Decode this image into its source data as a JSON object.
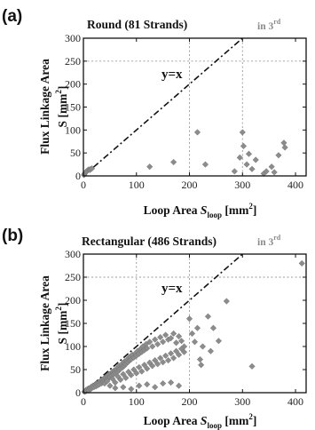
{
  "chart_data": [
    {
      "type": "scatter",
      "panel": "(a)",
      "title": "Round  (81 Strands)",
      "annotation_base": "in 3",
      "annotation_sup": "rd",
      "xlabel_prefix": "Loop Area ",
      "xlabel_var": "S",
      "xlabel_sub": "loop",
      "xlabel_unit": " [mm",
      "xlabel_unit_sup": "2",
      "xlabel_unit_end": "]",
      "ylabel_line1": "Flux Linkage Area",
      "ylabel_line2_base": "S [mm",
      "ylabel_line2_sup": "2",
      "ylabel_line2_end": "]",
      "reference_line_label": "y=x",
      "xlim": [
        0,
        420
      ],
      "ylim": [
        0,
        300
      ],
      "xticks": [
        0,
        100,
        200,
        300,
        400
      ],
      "yticks": [
        0,
        50,
        100,
        150,
        200,
        250,
        300
      ],
      "xtick_labels": [
        "0",
        "100",
        "200",
        "300",
        "400"
      ],
      "ytick_labels": [
        "0",
        "50",
        "100",
        "150",
        "200",
        "250",
        "300"
      ],
      "guide_x": [
        200,
        300
      ],
      "guide_y": 250,
      "points": [
        [
          1,
          2
        ],
        [
          2,
          4
        ],
        [
          3,
          6
        ],
        [
          4,
          7
        ],
        [
          5,
          9
        ],
        [
          6,
          10
        ],
        [
          8,
          12
        ],
        [
          10,
          14
        ],
        [
          12,
          13
        ],
        [
          14,
          15
        ],
        [
          16,
          16
        ],
        [
          125,
          20
        ],
        [
          170,
          30
        ],
        [
          215,
          95
        ],
        [
          230,
          25
        ],
        [
          285,
          10
        ],
        [
          295,
          40
        ],
        [
          300,
          95
        ],
        [
          302,
          65
        ],
        [
          308,
          25
        ],
        [
          312,
          48
        ],
        [
          318,
          15
        ],
        [
          325,
          35
        ],
        [
          340,
          5
        ],
        [
          345,
          10
        ],
        [
          355,
          20
        ],
        [
          360,
          8
        ],
        [
          368,
          45
        ],
        [
          378,
          72
        ],
        [
          380,
          62
        ]
      ]
    },
    {
      "type": "scatter",
      "panel": "(b)",
      "title": "Rectangular (486 Strands)",
      "annotation_base": "in 3",
      "annotation_sup": "rd",
      "xlabel_prefix": "Loop Area ",
      "xlabel_var": "S",
      "xlabel_sub": "loop",
      "xlabel_unit": " [mm",
      "xlabel_unit_sup": "2",
      "xlabel_unit_end": "]",
      "ylabel_line1": "Flux Linkage Area",
      "ylabel_line2_base": "S [mm",
      "ylabel_line2_sup": "2",
      "ylabel_line2_end": "]",
      "reference_line_label": "y=x",
      "xlim": [
        0,
        420
      ],
      "ylim": [
        0,
        300
      ],
      "xticks": [
        0,
        100,
        200,
        300,
        400
      ],
      "yticks": [
        0,
        50,
        100,
        150,
        200,
        250,
        300
      ],
      "xtick_labels": [
        "0",
        "100",
        "200",
        "300",
        "400"
      ],
      "ytick_labels": [
        "0",
        "50",
        "100",
        "150",
        "200",
        "250",
        "300"
      ],
      "guide_x": [
        100,
        200
      ],
      "guide_y": 250,
      "points": [
        [
          2,
          2
        ],
        [
          4,
          3
        ],
        [
          5,
          6
        ],
        [
          6,
          4
        ],
        [
          8,
          7
        ],
        [
          9,
          9
        ],
        [
          10,
          5
        ],
        [
          12,
          10
        ],
        [
          14,
          8
        ],
        [
          15,
          13
        ],
        [
          17,
          11
        ],
        [
          18,
          15
        ],
        [
          20,
          12
        ],
        [
          22,
          17
        ],
        [
          24,
          14
        ],
        [
          25,
          20
        ],
        [
          27,
          16
        ],
        [
          29,
          22
        ],
        [
          30,
          18
        ],
        [
          32,
          25
        ],
        [
          34,
          20
        ],
        [
          35,
          28
        ],
        [
          37,
          23
        ],
        [
          38,
          30
        ],
        [
          40,
          26
        ],
        [
          42,
          33
        ],
        [
          44,
          28
        ],
        [
          45,
          36
        ],
        [
          47,
          31
        ],
        [
          48,
          40
        ],
        [
          50,
          34
        ],
        [
          52,
          42
        ],
        [
          54,
          37
        ],
        [
          55,
          45
        ],
        [
          57,
          40
        ],
        [
          58,
          48
        ],
        [
          60,
          43
        ],
        [
          62,
          50
        ],
        [
          64,
          45
        ],
        [
          65,
          55
        ],
        [
          67,
          48
        ],
        [
          68,
          58
        ],
        [
          70,
          52
        ],
        [
          72,
          60
        ],
        [
          74,
          55
        ],
        [
          75,
          65
        ],
        [
          77,
          58
        ],
        [
          78,
          68
        ],
        [
          80,
          62
        ],
        [
          82,
          70
        ],
        [
          84,
          66
        ],
        [
          85,
          75
        ],
        [
          87,
          70
        ],
        [
          88,
          78
        ],
        [
          90,
          72
        ],
        [
          92,
          82
        ],
        [
          95,
          76
        ],
        [
          98,
          85
        ],
        [
          100,
          80
        ],
        [
          102,
          90
        ],
        [
          105,
          84
        ],
        [
          108,
          95
        ],
        [
          110,
          88
        ],
        [
          112,
          100
        ],
        [
          115,
          92
        ],
        [
          118,
          105
        ],
        [
          120,
          96
        ],
        [
          125,
          110
        ],
        [
          130,
          100
        ],
        [
          135,
          115
        ],
        [
          140,
          105
        ],
        [
          145,
          120
        ],
        [
          150,
          110
        ],
        [
          155,
          125
        ],
        [
          160,
          115
        ],
        [
          165,
          118
        ],
        [
          170,
          128
        ],
        [
          175,
          108
        ],
        [
          180,
          122
        ],
        [
          185,
          112
        ],
        [
          190,
          100
        ],
        [
          40,
          20
        ],
        [
          45,
          25
        ],
        [
          50,
          15
        ],
        [
          55,
          30
        ],
        [
          60,
          22
        ],
        [
          65,
          35
        ],
        [
          70,
          28
        ],
        [
          75,
          40
        ],
        [
          80,
          32
        ],
        [
          85,
          45
        ],
        [
          90,
          38
        ],
        [
          95,
          50
        ],
        [
          100,
          42
        ],
        [
          105,
          55
        ],
        [
          110,
          46
        ],
        [
          115,
          60
        ],
        [
          120,
          52
        ],
        [
          125,
          65
        ],
        [
          130,
          58
        ],
        [
          135,
          70
        ],
        [
          140,
          62
        ],
        [
          145,
          75
        ],
        [
          150,
          66
        ],
        [
          155,
          80
        ],
        [
          160,
          70
        ],
        [
          165,
          85
        ],
        [
          170,
          75
        ],
        [
          175,
          90
        ],
        [
          180,
          82
        ],
        [
          185,
          95
        ],
        [
          190,
          88
        ],
        [
          60,
          10
        ],
        [
          75,
          12
        ],
        [
          90,
          8
        ],
        [
          105,
          15
        ],
        [
          120,
          18
        ],
        [
          135,
          12
        ],
        [
          150,
          20
        ],
        [
          165,
          22
        ],
        [
          180,
          15
        ],
        [
          200,
          160
        ],
        [
          205,
          128
        ],
        [
          210,
          110
        ],
        [
          215,
          140
        ],
        [
          220,
          72
        ],
        [
          222,
          60
        ],
        [
          225,
          100
        ],
        [
          235,
          165
        ],
        [
          240,
          90
        ],
        [
          245,
          140
        ],
        [
          255,
          112
        ],
        [
          270,
          198
        ],
        [
          318,
          57
        ],
        [
          412,
          280
        ]
      ]
    }
  ]
}
